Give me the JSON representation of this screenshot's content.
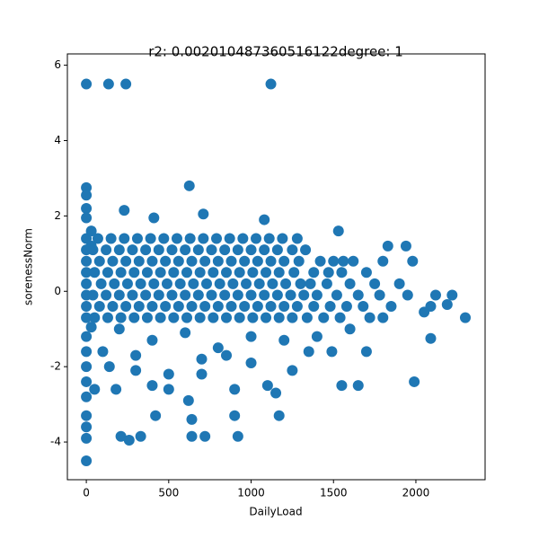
{
  "chart_data": {
    "type": "scatter",
    "title": "r2: 0.002010487360516122degree: 1",
    "xlabel": "DailyLoad",
    "ylabel": "sorenessNorm",
    "color": "#1f77b4",
    "xlim": [
      -115,
      2420
    ],
    "ylim": [
      -5.0,
      6.3
    ],
    "xticks": [
      0,
      500,
      1000,
      1500,
      2000
    ],
    "yticks": [
      -4,
      -2,
      0,
      2,
      4,
      6
    ],
    "x": [
      0,
      70,
      150,
      230,
      310,
      390,
      470,
      550,
      630,
      710,
      790,
      870,
      950,
      1030,
      1110,
      1190,
      1280,
      0,
      40,
      120,
      200,
      280,
      360,
      440,
      520,
      600,
      680,
      760,
      840,
      920,
      1000,
      1080,
      1160,
      1250,
      1330,
      0,
      80,
      160,
      240,
      320,
      400,
      480,
      560,
      640,
      720,
      800,
      880,
      960,
      1040,
      1120,
      1200,
      1290,
      1420,
      1500,
      1560,
      1620,
      1800,
      0,
      50,
      130,
      210,
      290,
      370,
      450,
      530,
      610,
      690,
      770,
      850,
      930,
      1010,
      1090,
      1170,
      1260,
      1380,
      1470,
      1550,
      1700,
      0,
      90,
      170,
      250,
      330,
      410,
      490,
      570,
      650,
      730,
      810,
      890,
      970,
      1050,
      1130,
      1210,
      1300,
      1360,
      1460,
      1600,
      1750,
      1900,
      0,
      40,
      120,
      200,
      280,
      360,
      440,
      520,
      600,
      680,
      760,
      840,
      920,
      1000,
      1080,
      1160,
      1240,
      1320,
      1400,
      1520,
      1650,
      1780,
      1950,
      2120,
      2220,
      0,
      80,
      160,
      240,
      320,
      400,
      480,
      560,
      640,
      720,
      800,
      880,
      960,
      1040,
      1120,
      1200,
      1280,
      1380,
      1480,
      1580,
      1680,
      1850,
      2090,
      0,
      50,
      130,
      210,
      290,
      370,
      450,
      530,
      610,
      690,
      770,
      850,
      930,
      1010,
      1090,
      1170,
      1250,
      1340,
      1440,
      1540,
      1720,
      2300,
      0,
      135,
      240,
      1120,
      0,
      0,
      625,
      0,
      230,
      410,
      710,
      0,
      1080,
      1530,
      1940,
      1830,
      1980,
      2050,
      2190,
      1990,
      2090,
      0,
      0,
      0,
      0,
      0,
      0,
      0,
      0,
      0,
      50,
      140,
      180,
      210,
      260,
      330,
      420,
      640,
      640,
      720,
      920,
      900,
      1170,
      100,
      300,
      500,
      700,
      900,
      1100,
      1250,
      1350,
      1490,
      1550,
      1650,
      1700,
      200,
      400,
      600,
      800,
      1000,
      1200,
      1400,
      1600,
      1800,
      700,
      300,
      1000,
      500,
      850,
      400,
      620,
      1150,
      30,
      30,
      30
    ],
    "y": [
      1.4,
      1.4,
      1.4,
      1.4,
      1.4,
      1.4,
      1.4,
      1.4,
      1.4,
      1.4,
      1.4,
      1.4,
      1.4,
      1.4,
      1.4,
      1.4,
      1.4,
      1.1,
      1.1,
      1.1,
      1.1,
      1.1,
      1.1,
      1.1,
      1.1,
      1.1,
      1.1,
      1.1,
      1.1,
      1.1,
      1.1,
      1.1,
      1.1,
      1.1,
      1.1,
      0.8,
      0.8,
      0.8,
      0.8,
      0.8,
      0.8,
      0.8,
      0.8,
      0.8,
      0.8,
      0.8,
      0.8,
      0.8,
      0.8,
      0.8,
      0.8,
      0.8,
      0.8,
      0.8,
      0.8,
      0.8,
      0.8,
      0.5,
      0.5,
      0.5,
      0.5,
      0.5,
      0.5,
      0.5,
      0.5,
      0.5,
      0.5,
      0.5,
      0.5,
      0.5,
      0.5,
      0.5,
      0.5,
      0.5,
      0.5,
      0.5,
      0.5,
      0.5,
      0.2,
      0.2,
      0.2,
      0.2,
      0.2,
      0.2,
      0.2,
      0.2,
      0.2,
      0.2,
      0.2,
      0.2,
      0.2,
      0.2,
      0.2,
      0.2,
      0.2,
      0.2,
      0.2,
      0.2,
      0.2,
      0.2,
      -0.1,
      -0.1,
      -0.1,
      -0.1,
      -0.1,
      -0.1,
      -0.1,
      -0.1,
      -0.1,
      -0.1,
      -0.1,
      -0.1,
      -0.1,
      -0.1,
      -0.1,
      -0.1,
      -0.1,
      -0.1,
      -0.1,
      -0.1,
      -0.1,
      -0.1,
      -0.1,
      -0.1,
      -0.1,
      -0.4,
      -0.4,
      -0.4,
      -0.4,
      -0.4,
      -0.4,
      -0.4,
      -0.4,
      -0.4,
      -0.4,
      -0.4,
      -0.4,
      -0.4,
      -0.4,
      -0.4,
      -0.4,
      -0.4,
      -0.4,
      -0.4,
      -0.4,
      -0.4,
      -0.4,
      -0.4,
      -0.7,
      -0.7,
      -0.7,
      -0.7,
      -0.7,
      -0.7,
      -0.7,
      -0.7,
      -0.7,
      -0.7,
      -0.7,
      -0.7,
      -0.7,
      -0.7,
      -0.7,
      -0.7,
      -0.7,
      -0.7,
      -0.7,
      -0.7,
      -0.7,
      -0.7,
      5.5,
      5.5,
      5.5,
      5.5,
      2.75,
      2.55,
      2.8,
      2.2,
      2.15,
      1.95,
      2.05,
      1.95,
      1.9,
      1.6,
      1.2,
      1.2,
      0.8,
      -0.55,
      -0.35,
      -2.4,
      -1.25,
      -1.2,
      -1.6,
      -2,
      -2.4,
      -2.8,
      -3.3,
      -3.6,
      -3.9,
      -4.5,
      -2.6,
      -2,
      -2.6,
      -3.85,
      -3.95,
      -3.85,
      -3.3,
      -3.4,
      -3.85,
      -3.85,
      -3.85,
      -3.3,
      -3.3,
      -1.6,
      -2.1,
      -2.6,
      -2.2,
      -2.6,
      -2.5,
      -2.1,
      -1.6,
      -1.6,
      -2.5,
      -2.5,
      -1.6,
      -1,
      -1.3,
      -1.1,
      -1.5,
      -1.2,
      -1.3,
      -1.2,
      -1,
      -0.7,
      -1.8,
      -1.7,
      -1.9,
      -2.2,
      -1.7,
      -2.5,
      -2.9,
      -2.7,
      -0.95,
      1.6,
      1.2
    ]
  }
}
